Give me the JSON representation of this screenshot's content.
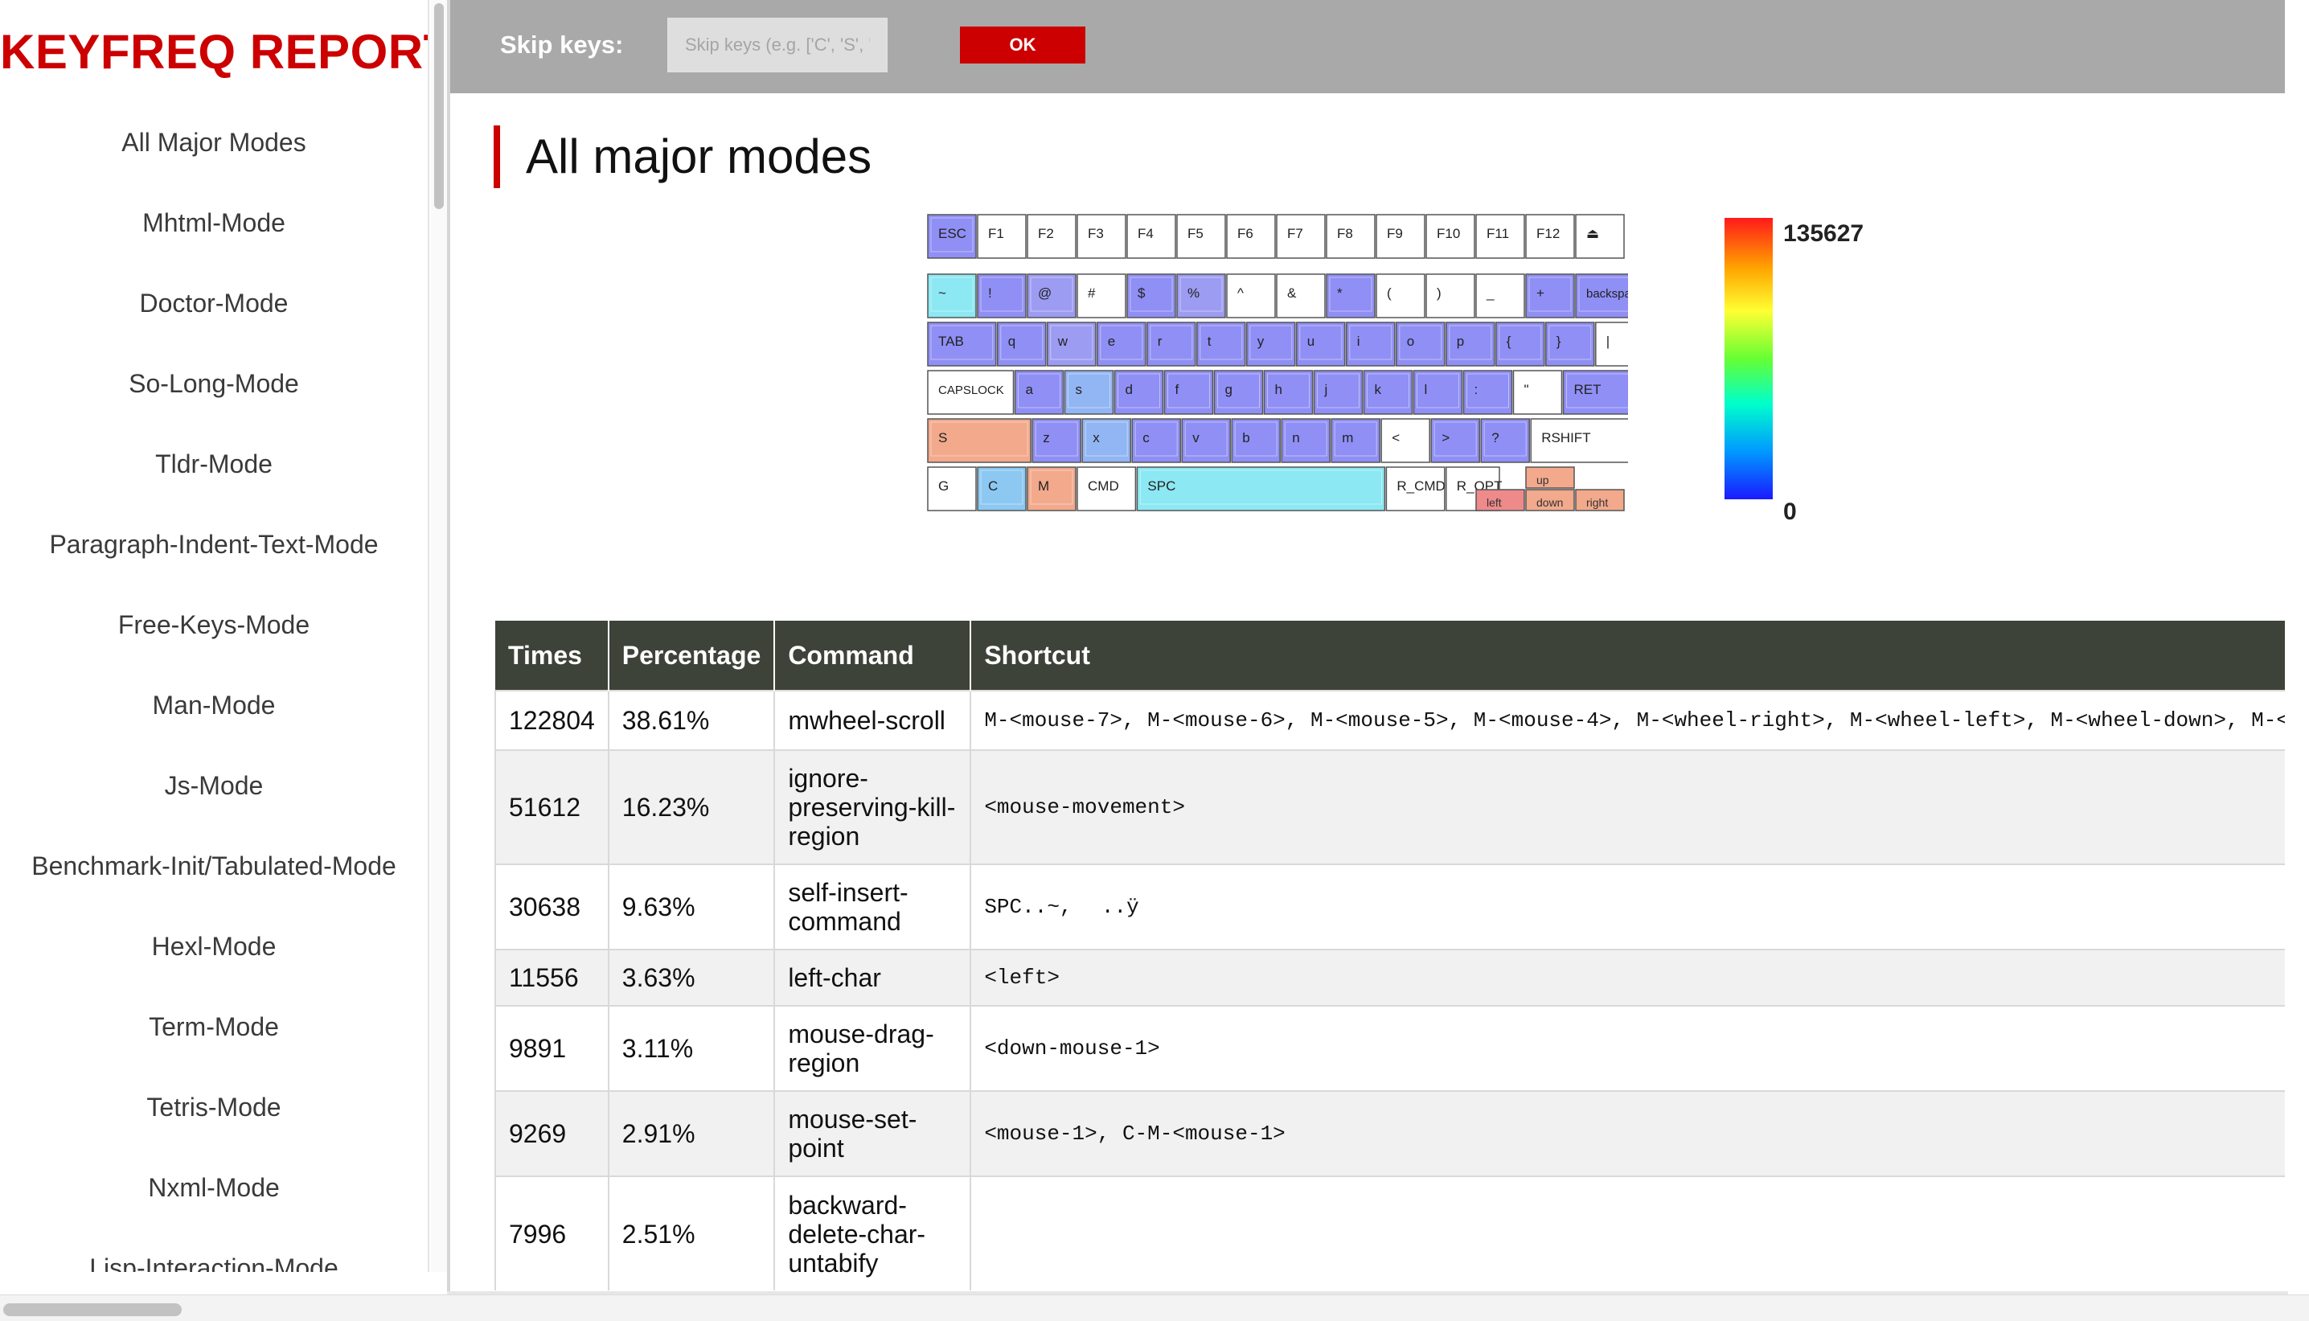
{
  "sidebar": {
    "title": "KEYFREQ REPORT",
    "items": [
      "All Major Modes",
      "Mhtml-Mode",
      "Doctor-Mode",
      "So-Long-Mode",
      "Tldr-Mode",
      "Paragraph-Indent-Text-Mode",
      "Free-Keys-Mode",
      "Man-Mode",
      "Js-Mode",
      "Benchmark-Init/Tabulated-Mode",
      "Hexl-Mode",
      "Term-Mode",
      "Tetris-Mode",
      "Nxml-Mode",
      "Lisp-Interaction-Mode"
    ]
  },
  "toolbar": {
    "skip_label": "Skip keys:",
    "skip_placeholder": "Skip keys (e.g. ['C', 'S', 'M'…",
    "skip_value": "",
    "ok_label": "OK"
  },
  "main": {
    "heading": "All major modes",
    "legend": {
      "max": "135627",
      "min": "0"
    }
  },
  "keyboard": {
    "rows": [
      [
        [
          "ESC",
          "#8f8ff5"
        ],
        [
          "F1",
          ""
        ],
        [
          "F2",
          ""
        ],
        [
          "F3",
          ""
        ],
        [
          "F4",
          ""
        ],
        [
          "F5",
          ""
        ],
        [
          "F6",
          ""
        ],
        [
          "F7",
          ""
        ],
        [
          "F8",
          ""
        ],
        [
          "F9",
          ""
        ],
        [
          "F10",
          ""
        ],
        [
          "F11",
          ""
        ],
        [
          "F12",
          ""
        ],
        [
          "⏏",
          ""
        ]
      ],
      [
        [
          "~",
          "#8ce8f2"
        ],
        [
          "!",
          "#8f8ff5"
        ],
        [
          "@",
          "#9c9cf3"
        ],
        [
          "#",
          ""
        ],
        [
          "$",
          "#8f8ff5"
        ],
        [
          "%",
          "#9c9cf3"
        ],
        [
          "^",
          ""
        ],
        [
          "&",
          ""
        ],
        [
          "*",
          "#8f8ff5"
        ],
        [
          "(",
          ""
        ],
        [
          ")",
          ""
        ],
        [
          "_",
          ""
        ],
        [
          "+",
          "#8f8ff5"
        ],
        [
          "backspace",
          "#8f8ff5"
        ]
      ],
      [
        [
          "TAB",
          "#8f8ff5"
        ],
        [
          "q",
          "#8f8ff5"
        ],
        [
          "w",
          "#9c9cf3"
        ],
        [
          "e",
          "#8f8ff5"
        ],
        [
          "r",
          "#8f8ff5"
        ],
        [
          "t",
          "#8f8ff5"
        ],
        [
          "y",
          "#8f8ff5"
        ],
        [
          "u",
          "#8f8ff5"
        ],
        [
          "i",
          "#8f8ff5"
        ],
        [
          "o",
          "#8f8ff5"
        ],
        [
          "p",
          "#8f8ff5"
        ],
        [
          "{",
          "#8f8ff5"
        ],
        [
          "}",
          "#8f8ff5"
        ],
        [
          "|",
          ""
        ]
      ],
      [
        [
          "CAPSLOCK",
          ""
        ],
        [
          "a",
          "#8f8ff5"
        ],
        [
          "s",
          "#92b6f3"
        ],
        [
          "d",
          "#8f8ff5"
        ],
        [
          "f",
          "#8f8ff5"
        ],
        [
          "g",
          "#8f8ff5"
        ],
        [
          "h",
          "#8f8ff5"
        ],
        [
          "j",
          "#8f8ff5"
        ],
        [
          "k",
          "#8f8ff5"
        ],
        [
          "l",
          "#8f8ff5"
        ],
        [
          ":",
          "#8f8ff5"
        ],
        [
          "\"",
          ""
        ],
        [
          "RET",
          "#8f8ff5"
        ]
      ],
      [
        [
          "S",
          "#f2a98c"
        ],
        [
          "z",
          "#8f8ff5"
        ],
        [
          "x",
          "#92b6f3"
        ],
        [
          "c",
          "#8f8ff5"
        ],
        [
          "v",
          "#8f8ff5"
        ],
        [
          "b",
          "#8f8ff5"
        ],
        [
          "n",
          "#8f8ff5"
        ],
        [
          "m",
          "#8f8ff5"
        ],
        [
          "<",
          ""
        ],
        [
          ">",
          "#8f8ff5"
        ],
        [
          "?",
          "#8f8ff5"
        ],
        [
          "RSHIFT",
          ""
        ]
      ],
      [
        [
          "G",
          ""
        ],
        [
          "C",
          "#8cc8f2"
        ],
        [
          "M",
          "#f2a98c"
        ],
        [
          "CMD",
          ""
        ],
        [
          "SPC",
          "#8ce8f2"
        ],
        [
          "R_CMD",
          ""
        ],
        [
          "R_OPT",
          ""
        ],
        [
          "left",
          "#ee8a8a"
        ],
        [
          "up",
          "#f2a98c"
        ],
        [
          "down",
          "#f2a98c"
        ],
        [
          "right",
          "#f2a98c"
        ]
      ]
    ]
  },
  "table": {
    "headers": [
      "Times",
      "Percentage",
      "Command",
      "Shortcut"
    ],
    "rows": [
      [
        "122804",
        "38.61%",
        "mwheel-scroll",
        "M-<mouse-7>, M-<mouse-6>, M-<mouse-5>, M-<mouse-4>, M-<wheel-right>, M-<wheel-left>, M-<wheel-down>, M-<"
      ],
      [
        "51612",
        "16.23%",
        "ignore-preserving-kill-region",
        "<mouse-movement>"
      ],
      [
        "30638",
        "9.63%",
        "self-insert-command",
        "SPC..~, ..ÿ"
      ],
      [
        "11556",
        "3.63%",
        "left-char",
        "<left>"
      ],
      [
        "9891",
        "3.11%",
        "mouse-drag-region",
        "<down-mouse-1>"
      ],
      [
        "9269",
        "2.91%",
        "mouse-set-point",
        "<mouse-1>, C-M-<mouse-1>"
      ],
      [
        "7996",
        "2.51%",
        "backward-delete-char-untabify",
        ""
      ]
    ]
  }
}
